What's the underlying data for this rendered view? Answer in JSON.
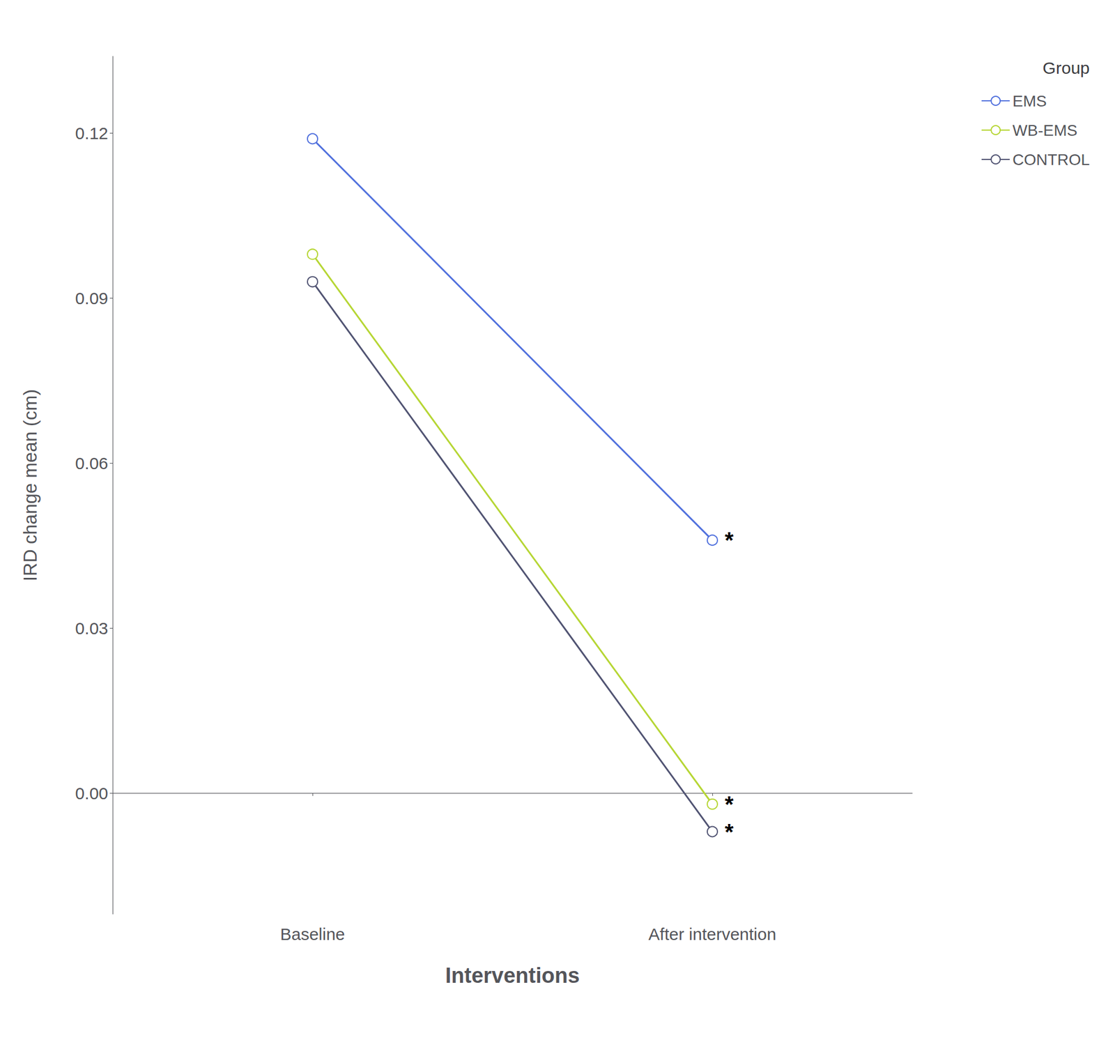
{
  "chart_data": {
    "type": "line",
    "categories": [
      "Baseline",
      "After intervention"
    ],
    "series": [
      {
        "name": "EMS",
        "values": [
          0.119,
          0.046
        ]
      },
      {
        "name": "WB-EMS",
        "values": [
          0.098,
          -0.002
        ]
      },
      {
        "name": "CONTROL",
        "values": [
          0.093,
          -0.007
        ]
      }
    ],
    "x_label": "Interventions",
    "y_label": "IRD change mean (cm)",
    "legend_title": "Group",
    "legend": "right",
    "ylim": [
      -0.022,
      0.134
    ],
    "yticks": [
      {
        "value": 0,
        "label": "0.00"
      },
      {
        "value": 0.03,
        "label": "0.03"
      },
      {
        "value": 0.06,
        "label": "0.06"
      },
      {
        "value": 0.09,
        "label": "0.09"
      },
      {
        "value": 0.12,
        "label": "0.12"
      }
    ],
    "grid": false,
    "annotations": [
      {
        "text": "*",
        "series": "EMS",
        "category": "After intervention"
      },
      {
        "text": "*",
        "series": "WB-EMS",
        "category": "After intervention"
      },
      {
        "text": "*",
        "series": "CONTROL",
        "category": "After intervention"
      }
    ]
  }
}
